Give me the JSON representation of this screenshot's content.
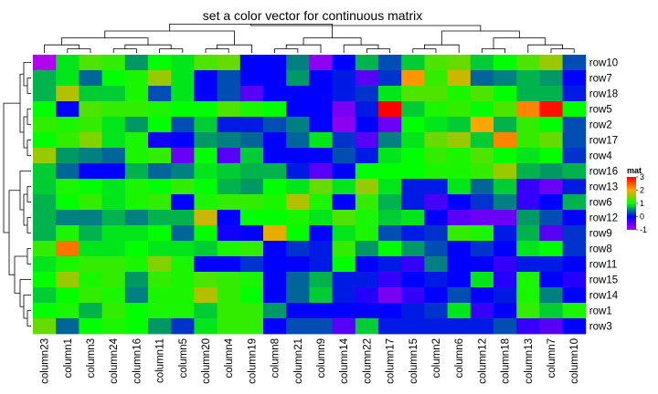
{
  "chart_data": {
    "type": "heatmap",
    "title": "set a color vector for continuous matrix",
    "columns": [
      "column23",
      "column1",
      "column3",
      "column24",
      "column16",
      "column11",
      "column5",
      "column20",
      "column4",
      "column19",
      "column8",
      "column21",
      "column9",
      "column14",
      "column22",
      "column17",
      "column15",
      "column2",
      "column6",
      "column12",
      "column18",
      "column13",
      "column7",
      "column10"
    ],
    "rows": [
      "row10",
      "row7",
      "row18",
      "row5",
      "row2",
      "row17",
      "row4",
      "row16",
      "row13",
      "row6",
      "row12",
      "row9",
      "row8",
      "row11",
      "row15",
      "row14",
      "row1",
      "row3"
    ],
    "values": [
      [
        -1.0,
        0.9,
        1.3,
        1.2,
        0.6,
        1.0,
        0.9,
        1.3,
        1.4,
        0.0,
        0.0,
        0.5,
        -0.8,
        0.0,
        0.7,
        0.3,
        0.8,
        1.3,
        1.4,
        0.8,
        1.0,
        1.3,
        1.6,
        0.3
      ],
      [
        0.7,
        0.9,
        0.4,
        1.0,
        1.1,
        1.6,
        0.9,
        0.0,
        0.3,
        0.0,
        0.0,
        0.6,
        0.0,
        0.1,
        -0.5,
        0.2,
        2.1,
        1.2,
        1.8,
        0.4,
        0.5,
        0.7,
        0.6,
        0.0
      ],
      [
        0.7,
        1.7,
        0.8,
        0.8,
        1.1,
        0.3,
        0.9,
        0.0,
        0.3,
        -0.5,
        0.0,
        0.0,
        0.0,
        0.1,
        0.2,
        0.9,
        1.3,
        1.3,
        1.1,
        1.3,
        1.0,
        0.7,
        0.7,
        0.1
      ],
      [
        1.0,
        0.0,
        1.3,
        1.2,
        1.2,
        1.1,
        1.0,
        1.0,
        1.3,
        1.1,
        1.0,
        0.0,
        0.0,
        -0.7,
        0.1,
        3.0,
        0.8,
        1.1,
        1.2,
        1.0,
        1.3,
        2.2,
        2.9,
        1.0
      ],
      [
        1.2,
        1.1,
        1.2,
        0.9,
        0.6,
        1.0,
        0.3,
        0.8,
        0.1,
        0.1,
        0.3,
        0.5,
        0.0,
        -0.8,
        0.0,
        -0.6,
        1.0,
        0.9,
        0.8,
        2.0,
        0.7,
        1.2,
        1.0,
        0.3
      ],
      [
        1.0,
        1.2,
        1.5,
        0.9,
        1.1,
        -0.1,
        0.0,
        0.6,
        0.5,
        0.4,
        0.0,
        0.4,
        0.9,
        0.2,
        -0.5,
        0.5,
        0.9,
        1.4,
        1.6,
        0.8,
        2.2,
        1.2,
        1.4,
        0.3
      ],
      [
        1.6,
        0.6,
        0.5,
        0.4,
        1.1,
        1.2,
        -0.6,
        1.0,
        -0.5,
        0.8,
        0.0,
        0.0,
        0.0,
        0.3,
        0.1,
        0.9,
        1.0,
        1.2,
        1.1,
        1.3,
        1.0,
        0.9,
        1.0,
        0.2
      ],
      [
        0.8,
        0.4,
        0.0,
        0.0,
        0.7,
        0.4,
        0.5,
        0.9,
        0.8,
        0.7,
        0.7,
        0.1,
        -0.5,
        0.0,
        1.0,
        1.0,
        1.0,
        1.1,
        1.1,
        1.2,
        1.6,
        0.7,
        0.6,
        0.7
      ],
      [
        0.8,
        1.1,
        1.0,
        0.9,
        1.1,
        1.0,
        1.2,
        1.0,
        0.7,
        0.6,
        1.0,
        0.9,
        1.4,
        0.9,
        1.6,
        0.9,
        0.1,
        0.1,
        0.9,
        0.4,
        0.8,
        -0.3,
        -0.6,
        0.1
      ],
      [
        0.7,
        1.0,
        1.2,
        0.9,
        1.1,
        1.2,
        0.0,
        1.1,
        1.2,
        1.2,
        1.1,
        1.7,
        1.1,
        0.0,
        1.2,
        0.7,
        0.1,
        -0.4,
        0.0,
        0.2,
        0.5,
        -0.3,
        0.0,
        0.7
      ],
      [
        0.7,
        0.5,
        0.5,
        0.7,
        0.5,
        0.7,
        0.7,
        1.8,
        0.0,
        1.0,
        1.0,
        1.1,
        0.9,
        1.3,
        1.1,
        0.8,
        0.9,
        0.0,
        -0.5,
        -0.6,
        -0.6,
        0.6,
        0.3,
        0.0
      ],
      [
        0.7,
        1.1,
        0.7,
        0.9,
        0.9,
        1.0,
        0.4,
        1.0,
        -0.1,
        0.0,
        1.9,
        1.0,
        0.0,
        0.9,
        1.1,
        0.3,
        0.1,
        0.2,
        1.2,
        1.1,
        0.1,
        0.7,
        -0.5,
        0.2
      ],
      [
        1.2,
        2.3,
        0.9,
        0.9,
        1.0,
        0.9,
        0.9,
        0.8,
        1.1,
        1.2,
        0.0,
        0.2,
        0.1,
        1.2,
        0.6,
        1.0,
        0.6,
        0.3,
        0.0,
        0.2,
        0.0,
        0.9,
        1.0,
        0.2
      ],
      [
        0.9,
        1.1,
        1.2,
        1.2,
        1.1,
        1.5,
        1.1,
        0.0,
        0.0,
        0.2,
        0.0,
        0.0,
        0.1,
        1.0,
        0.0,
        0.1,
        -0.3,
        0.5,
        0.0,
        0.0,
        -0.3,
        0.1,
        0.1,
        0.0
      ],
      [
        1.0,
        1.6,
        1.1,
        1.2,
        0.6,
        1.2,
        1.1,
        1.3,
        1.2,
        1.1,
        0.0,
        0.4,
        0.7,
        0.1,
        0.1,
        -0.3,
        0.0,
        0.1,
        0.0,
        0.9,
        -0.2,
        1.1,
        0.0,
        -0.2
      ],
      [
        0.8,
        1.0,
        1.2,
        1.1,
        0.5,
        1.1,
        1.1,
        1.7,
        1.2,
        1.0,
        0.0,
        0.4,
        0.8,
        0.1,
        -0.2,
        -0.7,
        -0.3,
        0.0,
        0.3,
        0.0,
        0.1,
        1.1,
        0.5,
        0.0
      ],
      [
        1.0,
        1.1,
        0.7,
        1.2,
        1.0,
        1.1,
        1.1,
        0.8,
        1.2,
        1.2,
        0.6,
        0.0,
        0.0,
        0.0,
        0.0,
        0.0,
        0.1,
        0.2,
        0.9,
        -0.3,
        0.0,
        1.2,
        0.8,
        1.1
      ],
      [
        1.4,
        0.4,
        1.0,
        1.1,
        1.0,
        0.6,
        0.2,
        0.9,
        1.2,
        1.2,
        0.0,
        0.3,
        0.3,
        -0.5,
        0.8,
        0.1,
        0.1,
        0.1,
        0.1,
        0.1,
        0.3,
        -0.3,
        -0.5,
        0.0
      ]
    ],
    "color_scale": {
      "breaks": [
        -1,
        0,
        1,
        2,
        3
      ],
      "colors": [
        "#b000ee",
        "#0000ff",
        "#00ff00",
        "#ffa500",
        "#ff0000"
      ]
    },
    "legend": {
      "title": "mat",
      "ticks": [
        3,
        2,
        1,
        0,
        -1
      ],
      "placement": "right"
    },
    "dendrograms": {
      "rows": "left",
      "columns": "top"
    }
  }
}
